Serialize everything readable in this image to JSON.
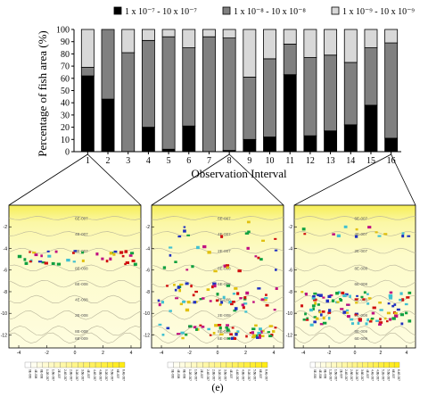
{
  "legend": [
    {
      "label": "1 x 10⁻⁷ - 10 x 10⁻⁷",
      "color": "#000000"
    },
    {
      "label": "1 x 10⁻⁸ - 10 x 10⁻⁸",
      "color": "#808080"
    },
    {
      "label": "1 x 10⁻⁹ - 10 x 10⁻⁹",
      "color": "#d8d8d8"
    }
  ],
  "figure_label": "(e)",
  "chart_data": [
    {
      "type": "bar",
      "stacked": true,
      "xlabel": "Observation Interval",
      "ylabel": "Percentage of fish area (%)",
      "ylim": [
        0,
        100
      ],
      "yticks": [
        0,
        10,
        20,
        30,
        40,
        50,
        60,
        70,
        80,
        90,
        100
      ],
      "categories": [
        "1",
        "2",
        "3",
        "4",
        "5",
        "6",
        "7",
        "8",
        "9",
        "10",
        "11",
        "12",
        "13",
        "14",
        "15",
        "16"
      ],
      "series": [
        {
          "name": "1 x 10⁻⁷ - 10 x 10⁻⁷",
          "color": "#000000",
          "values": [
            62,
            43,
            0,
            20,
            2,
            21,
            0,
            1,
            10,
            12,
            63,
            13,
            17,
            22,
            38,
            11
          ]
        },
        {
          "name": "1 x 10⁻⁸ - 10 x 10⁻⁸",
          "color": "#808080",
          "values": [
            7,
            57,
            81,
            71,
            92,
            64,
            94,
            92,
            51,
            64,
            25,
            64,
            62,
            51,
            47,
            78
          ]
        },
        {
          "name": "1 x 10⁻⁹ - 10 x 10⁻⁹",
          "color": "#d8d8d8",
          "values": [
            31,
            0,
            19,
            9,
            6,
            15,
            6,
            7,
            39,
            24,
            12,
            23,
            21,
            27,
            15,
            11
          ]
        }
      ],
      "zoom_links": [
        "1",
        "8",
        "16"
      ]
    },
    {
      "type": "heatmap",
      "panels": [
        {
          "interval": "1",
          "contour_labels": [
            "6E-007",
            "4E-007",
            "2E-007",
            "8E-008",
            "6E-008",
            "4E-008",
            "2E-008",
            "8E-009",
            "6E-009"
          ],
          "yticks": [
            "-2",
            "-4",
            "-6",
            "-8",
            "-10",
            "-12"
          ],
          "xticks": [
            "-4",
            "-2",
            "0",
            "2",
            "4"
          ]
        },
        {
          "interval": "8",
          "contour_labels": [
            "6E-007",
            "4E-007",
            "2E-007",
            "8E-008",
            "6E-008",
            "4E-008",
            "2E-008",
            "8E-009",
            "6E-009"
          ],
          "yticks": [
            "-2",
            "-4",
            "-6",
            "-8",
            "-10",
            "-12"
          ],
          "xticks": [
            "-4",
            "-2",
            "0",
            "2",
            "4"
          ]
        },
        {
          "interval": "16",
          "contour_labels": [
            "6E-007",
            "4E-007",
            "2E-007",
            "8E-008",
            "6E-008",
            "4E-008",
            "2E-008",
            "8E-009",
            "6E-009"
          ],
          "yticks": [
            "-2",
            "-4",
            "-6",
            "-8",
            "-10",
            "-12"
          ],
          "xticks": [
            "-4",
            "-2",
            "0",
            "2",
            "4"
          ]
        }
      ],
      "colorbar_labels": [
        "0E-000",
        "4E-008",
        "8E-008",
        "1.2E-007",
        "1.6E-007",
        "2E-007",
        "2.4E-007",
        "2.8E-007",
        "3.2E-007",
        "3.6E-007",
        "4E-007",
        "4.4E-007",
        "4.8E-007",
        "5.2E-007",
        "5.6E-007",
        "6E-007",
        "6.4E-007"
      ]
    }
  ]
}
